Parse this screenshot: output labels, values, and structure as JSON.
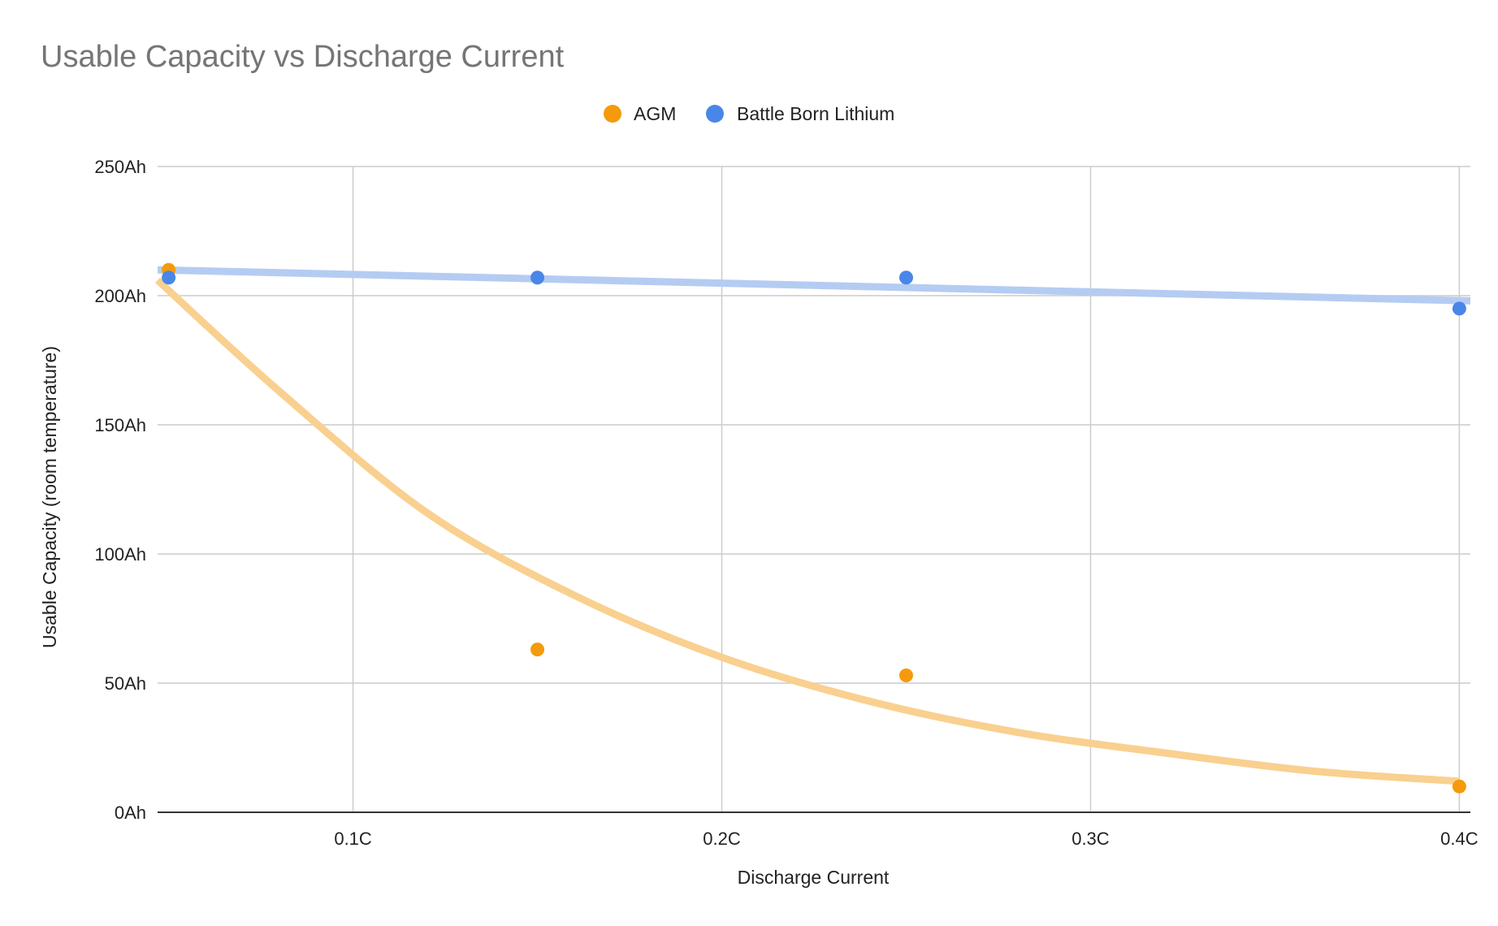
{
  "chart_data": {
    "type": "scatter",
    "title": "Usable Capacity vs Discharge Current",
    "xlabel": "Discharge Current",
    "ylabel": "Usable Capacity (room temperature)",
    "xlim": [
      0.047,
      0.403
    ],
    "ylim": [
      0,
      250
    ],
    "x_ticks": [
      {
        "value": 0.1,
        "label": "0.1C"
      },
      {
        "value": 0.2,
        "label": "0.2C"
      },
      {
        "value": 0.3,
        "label": "0.3C"
      },
      {
        "value": 0.4,
        "label": "0.4C"
      }
    ],
    "y_ticks": [
      {
        "value": 0,
        "label": "0Ah"
      },
      {
        "value": 50,
        "label": "50Ah"
      },
      {
        "value": 100,
        "label": "100Ah"
      },
      {
        "value": 150,
        "label": "150Ah"
      },
      {
        "value": 200,
        "label": "200Ah"
      },
      {
        "value": 250,
        "label": "250Ah"
      }
    ],
    "grid": true,
    "legend_position": "top-center",
    "series": [
      {
        "name": "AGM",
        "color": "#f59a0c",
        "trend_color": "#f9d08f",
        "trendline": "exponential",
        "x": [
          0.05,
          0.15,
          0.25,
          0.4
        ],
        "y": [
          210,
          63,
          53,
          10
        ],
        "trend_points": [
          [
            0.047,
            206
          ],
          [
            0.08,
            163
          ],
          [
            0.12,
            116
          ],
          [
            0.16,
            84
          ],
          [
            0.2,
            60
          ],
          [
            0.24,
            43
          ],
          [
            0.28,
            31
          ],
          [
            0.32,
            23
          ],
          [
            0.36,
            16
          ],
          [
            0.4,
            12
          ]
        ]
      },
      {
        "name": "Battle Born Lithium",
        "color": "#4a86e8",
        "trend_color": "#b5ccf2",
        "trendline": "linear",
        "x": [
          0.05,
          0.15,
          0.25,
          0.4
        ],
        "y": [
          207,
          207,
          207,
          195
        ],
        "trend_points": [
          [
            0.047,
            210
          ],
          [
            0.403,
            198
          ]
        ]
      }
    ]
  }
}
